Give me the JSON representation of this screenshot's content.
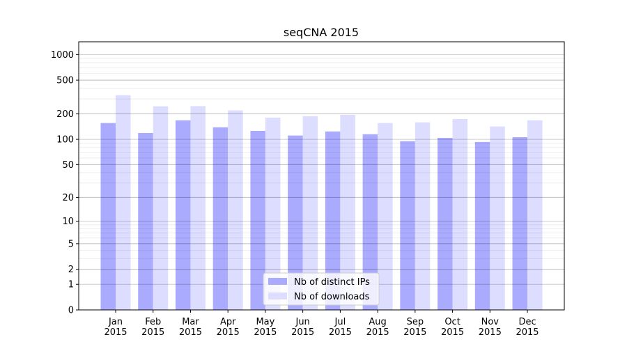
{
  "chart_data": {
    "type": "bar",
    "title": "seqCNA 2015",
    "xlabel": "",
    "ylabel": "",
    "yscale": "log(1+y) (symlog-like)",
    "ylim": [
      0,
      1300
    ],
    "yticks": [
      0,
      1,
      2,
      5,
      10,
      20,
      50,
      100,
      200,
      500,
      1000
    ],
    "grid": true,
    "legend_position": "lower center",
    "categories": [
      "Jan\n2015",
      "Feb\n2015",
      "Mar\n2015",
      "Apr\n2015",
      "May\n2015",
      "Jun\n2015",
      "Jul\n2015",
      "Aug\n2015",
      "Sep\n2015",
      "Oct\n2015",
      "Nov\n2015",
      "Dec\n2015"
    ],
    "series": [
      {
        "name": "Nb of distinct IPs",
        "color": "#aaaaff",
        "values": [
          156,
          119,
          168,
          139,
          126,
          111,
          124,
          115,
          95,
          104,
          93,
          106
        ]
      },
      {
        "name": "Nb of downloads",
        "color": "#ddddff",
        "values": [
          333,
          246,
          247,
          220,
          181,
          188,
          195,
          156,
          159,
          174,
          142,
          168
        ]
      }
    ]
  }
}
